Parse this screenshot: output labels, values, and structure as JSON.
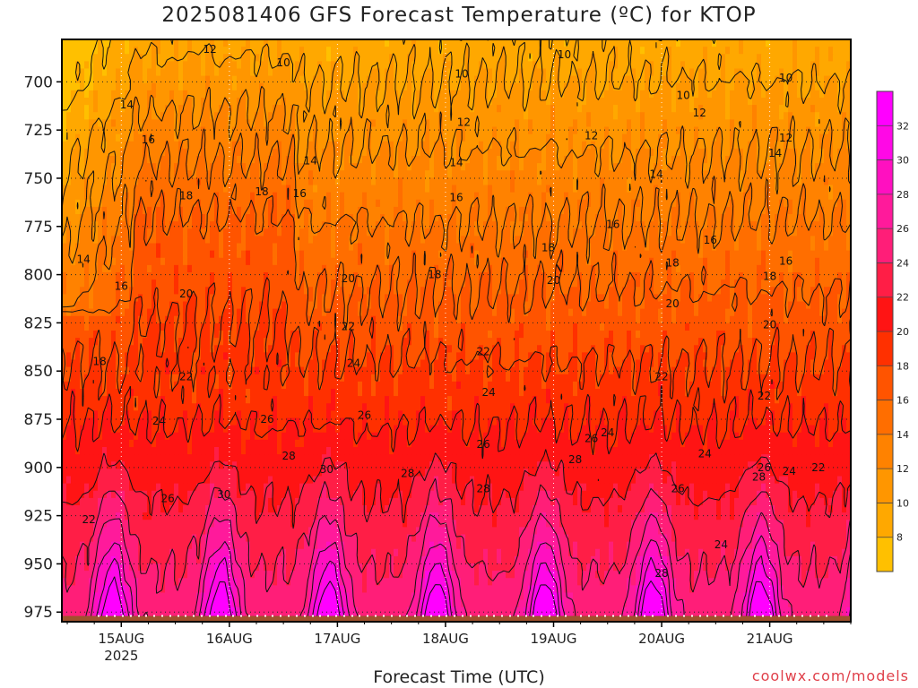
{
  "title": "2025081406 GFS Forecast Temperature (ºC) for KTOP",
  "credit": "coolwx.com/models",
  "chart_data": {
    "type": "heatmap",
    "title": "2025081406 GFS Forecast Temperature (ºC) for KTOP",
    "xlabel": "Forecast Time (UTC)",
    "ylabel": "",
    "x_ticks": [
      {
        "day": 0,
        "label": "15AUG",
        "sublabel": "2025"
      },
      {
        "day": 1,
        "label": "16AUG",
        "sublabel": ""
      },
      {
        "day": 2,
        "label": "17AUG",
        "sublabel": ""
      },
      {
        "day": 3,
        "label": "18AUG",
        "sublabel": ""
      },
      {
        "day": 4,
        "label": "19AUG",
        "sublabel": ""
      },
      {
        "day": 5,
        "label": "20AUG",
        "sublabel": ""
      },
      {
        "day": 6,
        "label": "21AUG",
        "sublabel": ""
      }
    ],
    "xlim_days": [
      -0.55,
      6.75
    ],
    "y_ticks": [
      700,
      725,
      750,
      775,
      800,
      825,
      850,
      875,
      900,
      925,
      950,
      975
    ],
    "ylim_hpa": [
      678,
      980
    ],
    "surface_hpa": 977,
    "colorbar": {
      "levels": [
        6,
        8,
        10,
        12,
        14,
        16,
        18,
        20,
        22,
        24,
        26,
        28,
        30,
        32,
        34
      ],
      "labels": [
        "8",
        "10",
        "12",
        "14",
        "16",
        "18",
        "20",
        "22",
        "24",
        "26",
        "28",
        "30",
        "32"
      ],
      "colors": [
        "#ffc000",
        "#ffa800",
        "#ff9600",
        "#ff8200",
        "#ff6e00",
        "#ff5400",
        "#ff3000",
        "#ff1414",
        "#ff1e46",
        "#ff1e78",
        "#ff1a9b",
        "#ff10c0",
        "#ff08e6",
        "#ff00ff"
      ]
    },
    "contour_labels": [
      {
        "v": "12",
        "day": 0.82,
        "p": 683
      },
      {
        "v": "10",
        "day": 1.5,
        "p": 690
      },
      {
        "v": "10",
        "day": 3.15,
        "p": 696
      },
      {
        "v": "10",
        "day": 4.1,
        "p": 686
      },
      {
        "v": "10",
        "day": 5.2,
        "p": 707
      },
      {
        "v": "10",
        "day": 6.15,
        "p": 698
      },
      {
        "v": "12",
        "day": 3.17,
        "p": 721
      },
      {
        "v": "12",
        "day": 4.35,
        "p": 728
      },
      {
        "v": "12",
        "day": 5.35,
        "p": 716
      },
      {
        "v": "12",
        "day": 6.15,
        "p": 729
      },
      {
        "v": "14",
        "day": 0.05,
        "p": 712
      },
      {
        "v": "14",
        "day": 1.75,
        "p": 741
      },
      {
        "v": "14",
        "day": 3.1,
        "p": 742
      },
      {
        "v": "14",
        "day": 4.95,
        "p": 748
      },
      {
        "v": "14",
        "day": 6.05,
        "p": 737
      },
      {
        "v": "16",
        "day": 0.25,
        "p": 730
      },
      {
        "v": "16",
        "day": 1.65,
        "p": 758
      },
      {
        "v": "16",
        "day": 3.1,
        "p": 760
      },
      {
        "v": "16",
        "day": 4.55,
        "p": 774
      },
      {
        "v": "16",
        "day": 5.45,
        "p": 782
      },
      {
        "v": "16",
        "day": 6.15,
        "p": 793
      },
      {
        "v": "14",
        "day": -0.35,
        "p": 792
      },
      {
        "v": "16",
        "day": -0.0,
        "p": 806
      },
      {
        "v": "18",
        "day": 0.6,
        "p": 759
      },
      {
        "v": "18",
        "day": 1.3,
        "p": 757
      },
      {
        "v": "18",
        "day": 2.9,
        "p": 800
      },
      {
        "v": "18",
        "day": 3.95,
        "p": 786
      },
      {
        "v": "18",
        "day": 5.1,
        "p": 794
      },
      {
        "v": "18",
        "day": 6.0,
        "p": 801
      },
      {
        "v": "18",
        "day": -0.2,
        "p": 845
      },
      {
        "v": "20",
        "day": 0.6,
        "p": 810
      },
      {
        "v": "20",
        "day": 2.1,
        "p": 802
      },
      {
        "v": "20",
        "day": 4.0,
        "p": 803
      },
      {
        "v": "20",
        "day": 5.1,
        "p": 815
      },
      {
        "v": "20",
        "day": 6.0,
        "p": 826
      },
      {
        "v": "22",
        "day": 0.6,
        "p": 853
      },
      {
        "v": "22",
        "day": 2.1,
        "p": 827
      },
      {
        "v": "22",
        "day": 3.35,
        "p": 840
      },
      {
        "v": "22",
        "day": 5.0,
        "p": 853
      },
      {
        "v": "22",
        "day": 5.95,
        "p": 863
      },
      {
        "v": "22",
        "day": 6.45,
        "p": 900
      },
      {
        "v": "22",
        "day": -0.3,
        "p": 927
      },
      {
        "v": "24",
        "day": 0.35,
        "p": 876
      },
      {
        "v": "24",
        "day": 2.15,
        "p": 846
      },
      {
        "v": "24",
        "day": 3.4,
        "p": 861
      },
      {
        "v": "24",
        "day": 4.5,
        "p": 882
      },
      {
        "v": "24",
        "day": 5.4,
        "p": 893
      },
      {
        "v": "24",
        "day": 6.18,
        "p": 902
      },
      {
        "v": "24",
        "day": 5.55,
        "p": 940
      },
      {
        "v": "26",
        "day": 0.43,
        "p": 916
      },
      {
        "v": "26",
        "day": 1.35,
        "p": 875
      },
      {
        "v": "26",
        "day": 2.25,
        "p": 873
      },
      {
        "v": "26",
        "day": 3.35,
        "p": 888
      },
      {
        "v": "26",
        "day": 4.35,
        "p": 885
      },
      {
        "v": "26",
        "day": 5.15,
        "p": 911
      },
      {
        "v": "26",
        "day": 5.95,
        "p": 900
      },
      {
        "v": "28",
        "day": 1.55,
        "p": 894
      },
      {
        "v": "28",
        "day": 2.65,
        "p": 903
      },
      {
        "v": "28",
        "day": 3.35,
        "p": 911
      },
      {
        "v": "28",
        "day": 4.2,
        "p": 896
      },
      {
        "v": "28",
        "day": 5.0,
        "p": 955
      },
      {
        "v": "28",
        "day": 5.9,
        "p": 905
      },
      {
        "v": "30",
        "day": 1.9,
        "p": 901
      },
      {
        "v": "30",
        "day": 0.95,
        "p": 914
      }
    ]
  }
}
